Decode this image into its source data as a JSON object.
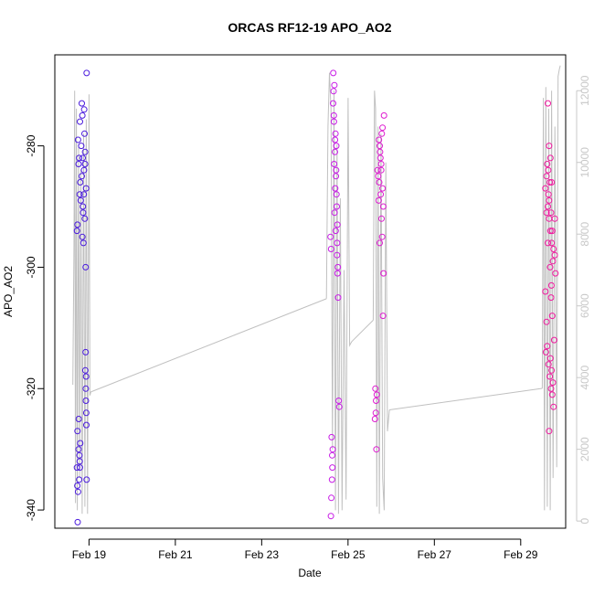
{
  "chart_data": {
    "type": "scatter",
    "title": "ORCAS RF12-19 APO_AO2",
    "xlabel": "Date",
    "ylabel": "APO_AO2",
    "x_ticks": [
      "Feb 19",
      "Feb 21",
      "Feb 23",
      "Feb 25",
      "Feb 27",
      "Feb 29"
    ],
    "y_ticks": [
      "-280",
      "-300",
      "-320",
      "-340"
    ],
    "y2_ticks": [
      "0",
      "2000",
      "4000",
      "6000",
      "8000",
      "10000",
      "12000"
    ],
    "xlim": [
      "2016-02-18 05:00",
      "2016-03-01 01:00"
    ],
    "ylim": [
      -343,
      -265
    ],
    "y2lim": [
      -200,
      13000
    ],
    "grid": false,
    "colors": {
      "flight_1": "#4a1bdd",
      "flight_2": "#c81be6",
      "flight_3": "#de1bd0",
      "flight_4": "#f0199f",
      "altitude_line": "#c0c0c0",
      "right_axis": "#c8c8c8"
    },
    "series": [
      {
        "color": "#4a1bdd",
        "x_range": [
          "2016-02-18 17:00",
          "2016-02-18 23:00"
        ],
        "points": [
          [
            0.1,
            -293
          ],
          [
            0.3,
            -288
          ],
          [
            0.55,
            -275
          ],
          [
            0.5,
            -273
          ],
          [
            0.65,
            -296
          ],
          [
            0.45,
            -280
          ],
          [
            0.2,
            -283
          ],
          [
            0.8,
            -281
          ],
          [
            0.35,
            -286
          ],
          [
            0.6,
            -290
          ],
          [
            0.7,
            -284
          ],
          [
            0.15,
            -279
          ],
          [
            0.4,
            -289
          ],
          [
            0.9,
            -287
          ],
          [
            0.25,
            -282
          ],
          [
            0.75,
            -278
          ],
          [
            0.55,
            -295
          ],
          [
            0.85,
            -300
          ],
          [
            0.05,
            -294
          ],
          [
            0.95,
            -268
          ],
          [
            0.5,
            -285
          ],
          [
            0.62,
            -291
          ],
          [
            0.33,
            -276
          ],
          [
            0.72,
            -274
          ],
          [
            0.1,
            -327
          ],
          [
            0.2,
            -330
          ],
          [
            0.3,
            -332
          ],
          [
            0.25,
            -335
          ],
          [
            0.15,
            -337
          ],
          [
            0.05,
            -333
          ],
          [
            0.35,
            -329
          ],
          [
            0.12,
            -342
          ],
          [
            0.22,
            -325
          ],
          [
            0.28,
            -331
          ],
          [
            0.08,
            -336
          ],
          [
            0.32,
            -333
          ],
          [
            0.85,
            -314
          ],
          [
            0.9,
            -318
          ],
          [
            0.88,
            -322
          ],
          [
            0.92,
            -326
          ],
          [
            0.87,
            -320
          ],
          [
            0.95,
            -335
          ],
          [
            0.83,
            -317
          ],
          [
            0.91,
            -324
          ],
          [
            0.8,
            -283
          ],
          [
            0.78,
            -292
          ],
          [
            0.68,
            -288
          ],
          [
            0.58,
            -282
          ]
        ]
      },
      {
        "color": "#c81be6",
        "x_range": [
          "2016-02-24 14:00",
          "2016-02-24 20:00"
        ],
        "points": [
          [
            0.3,
            -268
          ],
          [
            0.4,
            -270
          ],
          [
            0.35,
            -275
          ],
          [
            0.5,
            -278
          ],
          [
            0.45,
            -281
          ],
          [
            0.55,
            -285
          ],
          [
            0.6,
            -288
          ],
          [
            0.42,
            -291
          ],
          [
            0.52,
            -294
          ],
          [
            0.65,
            -298
          ],
          [
            0.7,
            -301
          ],
          [
            0.75,
            -305
          ],
          [
            0.38,
            -283
          ],
          [
            0.48,
            -287
          ],
          [
            0.58,
            -280
          ],
          [
            0.62,
            -290
          ],
          [
            0.28,
            -273
          ],
          [
            0.68,
            -293
          ],
          [
            0.05,
            -295
          ],
          [
            0.1,
            -297
          ],
          [
            0.15,
            -328
          ],
          [
            0.2,
            -331
          ],
          [
            0.18,
            -335
          ],
          [
            0.12,
            -338
          ],
          [
            0.22,
            -333
          ],
          [
            0.08,
            -341
          ],
          [
            0.25,
            -330
          ],
          [
            0.8,
            -322
          ],
          [
            0.85,
            -323
          ],
          [
            0.72,
            -300
          ],
          [
            0.66,
            -296
          ],
          [
            0.56,
            -284
          ],
          [
            0.46,
            -279
          ],
          [
            0.36,
            -276
          ],
          [
            0.33,
            -271
          ]
        ]
      },
      {
        "color": "#de1bd0",
        "x_range": [
          "2016-02-25 14:00",
          "2016-02-25 22:00"
        ],
        "points": [
          [
            0.4,
            -279
          ],
          [
            0.45,
            -280
          ],
          [
            0.5,
            -282
          ],
          [
            0.55,
            -283
          ],
          [
            0.6,
            -278
          ],
          [
            0.35,
            -285
          ],
          [
            0.65,
            -287
          ],
          [
            0.3,
            -284
          ],
          [
            0.7,
            -290
          ],
          [
            0.75,
            -275
          ],
          [
            0.52,
            -288
          ],
          [
            0.48,
            -281
          ],
          [
            0.42,
            -286
          ],
          [
            0.58,
            -292
          ],
          [
            0.62,
            -295
          ],
          [
            0.68,
            -308
          ],
          [
            0.72,
            -301
          ],
          [
            0.38,
            -289
          ],
          [
            0.15,
            -320
          ],
          [
            0.2,
            -322
          ],
          [
            0.18,
            -324
          ],
          [
            0.12,
            -325
          ],
          [
            0.25,
            -321
          ],
          [
            0.22,
            -330
          ],
          [
            0.45,
            -296
          ],
          [
            0.55,
            -284
          ],
          [
            0.65,
            -277
          ]
        ]
      },
      {
        "color": "#f0199f",
        "x_range": [
          "2016-02-29 13:00",
          "2016-02-29 20:00"
        ],
        "points": [
          [
            0.1,
            -287
          ],
          [
            0.2,
            -285
          ],
          [
            0.3,
            -290
          ],
          [
            0.4,
            -292
          ],
          [
            0.5,
            -294
          ],
          [
            0.6,
            -296
          ],
          [
            0.7,
            -299
          ],
          [
            0.25,
            -283
          ],
          [
            0.35,
            -288
          ],
          [
            0.45,
            -286
          ],
          [
            0.55,
            -291
          ],
          [
            0.65,
            -294
          ],
          [
            0.4,
            -280
          ],
          [
            0.5,
            -282
          ],
          [
            0.3,
            -273
          ],
          [
            0.6,
            -286
          ],
          [
            0.2,
            -309
          ],
          [
            0.15,
            -314
          ],
          [
            0.25,
            -313
          ],
          [
            0.35,
            -316
          ],
          [
            0.45,
            -318
          ],
          [
            0.55,
            -320
          ],
          [
            0.65,
            -321
          ],
          [
            0.75,
            -323
          ],
          [
            0.5,
            -315
          ],
          [
            0.6,
            -317
          ],
          [
            0.7,
            -319
          ],
          [
            0.8,
            -312
          ],
          [
            0.4,
            -327
          ],
          [
            0.85,
            -298
          ],
          [
            0.9,
            -301
          ],
          [
            0.3,
            -296
          ],
          [
            0.1,
            -304
          ],
          [
            0.4,
            -289
          ],
          [
            0.55,
            -305
          ],
          [
            0.65,
            -308
          ],
          [
            0.75,
            -297
          ],
          [
            0.85,
            -292
          ],
          [
            0.2,
            -291
          ],
          [
            0.33,
            -284
          ],
          [
            0.48,
            -300
          ],
          [
            0.58,
            -303
          ]
        ]
      }
    ],
    "altitude": {
      "axis": "right",
      "label": "",
      "color": "#c0c0c0",
      "segments": [
        {
          "x_range": [
            "2016-02-18 15:00",
            "2016-02-19 01:00"
          ],
          "wiggle": [
            [
              0.0,
              3800
            ],
            [
              0.06,
              7500
            ],
            [
              0.1,
              12000
            ],
            [
              0.15,
              500
            ],
            [
              0.2,
              11500
            ],
            [
              0.25,
              300
            ],
            [
              0.32,
              10500
            ],
            [
              0.38,
              1200
            ],
            [
              0.45,
              9800
            ],
            [
              0.52,
              200
            ],
            [
              0.6,
              10800
            ],
            [
              0.67,
              400
            ],
            [
              0.75,
              11200
            ],
            [
              0.82,
              200
            ],
            [
              0.9,
              11900
            ],
            [
              0.95,
              3500
            ],
            [
              1.0,
              3600
            ]
          ]
        },
        {
          "x_range": [
            "2016-02-24 12:00",
            "2016-02-25 02:00"
          ],
          "wiggle": [
            [
              0.0,
              6200
            ],
            [
              0.06,
              11000
            ],
            [
              0.12,
              12500
            ],
            [
              0.18,
              11500
            ],
            [
              0.24,
              2000
            ],
            [
              0.3,
              12000
            ],
            [
              0.36,
              300
            ],
            [
              0.42,
              10500
            ],
            [
              0.48,
              200
            ],
            [
              0.55,
              9000
            ],
            [
              0.62,
              300
            ],
            [
              0.7,
              7000
            ],
            [
              0.78,
              600
            ],
            [
              0.86,
              11800
            ],
            [
              0.92,
              4900
            ],
            [
              1.0,
              5000
            ]
          ]
        },
        {
          "x_range": [
            "2016-02-25 14:00",
            "2016-02-25 23:00"
          ],
          "wiggle": [
            [
              0.0,
              5600
            ],
            [
              0.08,
              12000
            ],
            [
              0.15,
              11500
            ],
            [
              0.22,
              400
            ],
            [
              0.3,
              11000
            ],
            [
              0.38,
              200
            ],
            [
              0.48,
              10800
            ],
            [
              0.58,
              1200
            ],
            [
              0.68,
              300
            ],
            [
              0.78,
              10000
            ],
            [
              0.88,
              2500
            ],
            [
              1.0,
              3100
            ]
          ]
        },
        {
          "x_range": [
            "2016-02-29 12:00",
            "2016-02-29 22:00"
          ],
          "wiggle": [
            [
              0.0,
              3700
            ],
            [
              0.06,
              11800
            ],
            [
              0.12,
              300
            ],
            [
              0.2,
              12100
            ],
            [
              0.28,
              400
            ],
            [
              0.36,
              11500
            ],
            [
              0.44,
              300
            ],
            [
              0.52,
              12000
            ],
            [
              0.6,
              1200
            ],
            [
              0.7,
              11000
            ],
            [
              0.8,
              1500
            ],
            [
              0.88,
              12400
            ],
            [
              0.95,
              12600
            ],
            [
              1.0,
              12700
            ]
          ]
        }
      ],
      "transits": [
        [
          "2016-02-19 01:00",
          3600,
          "2016-02-24 12:00",
          6200
        ],
        [
          "2016-02-25 02:00",
          5000,
          "2016-02-25 14:00",
          5600
        ],
        [
          "2016-02-25 23:00",
          3100,
          "2016-02-29 12:00",
          3700
        ]
      ]
    }
  }
}
